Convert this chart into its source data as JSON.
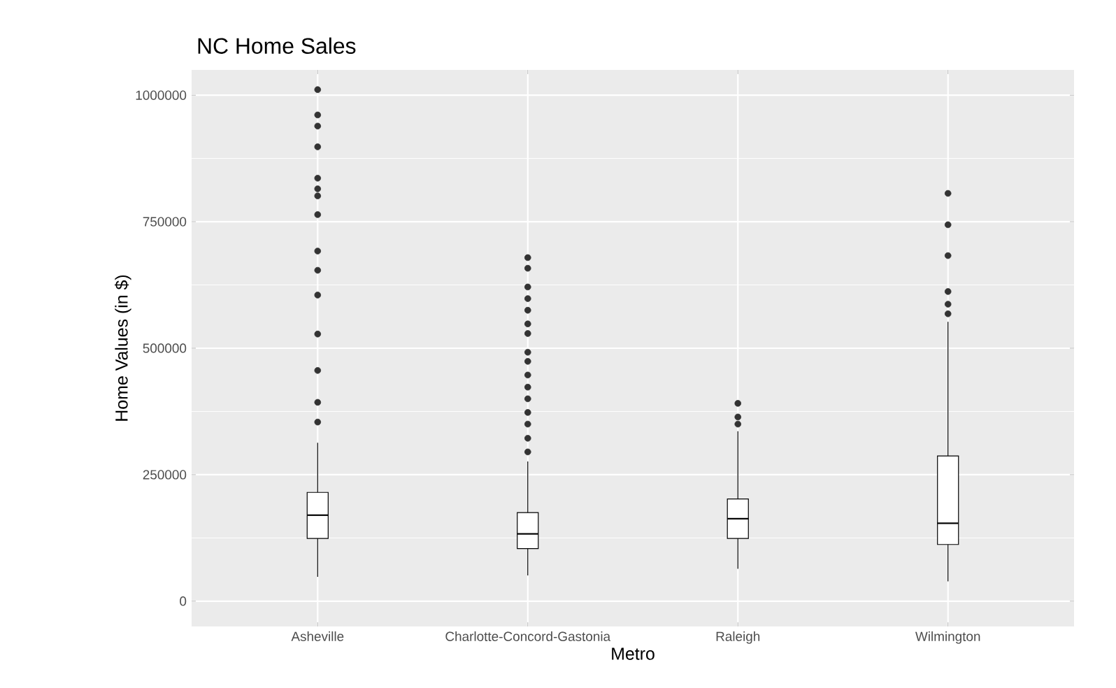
{
  "chart_data": {
    "type": "box",
    "title": "NC Home Sales",
    "xlabel": "Metro",
    "ylabel": "Home Values (in $)",
    "categories": [
      "Asheville",
      "Charlotte-Concord-Gastonia",
      "Raleigh",
      "Wilmington"
    ],
    "boxes": [
      {
        "low": 48000,
        "q1": 124000,
        "median": 170000,
        "q3": 215000,
        "high": 313000,
        "outliers": [
          1011000,
          961000,
          939000,
          898000,
          836000,
          815000,
          801000,
          764000,
          692000,
          654000,
          605000,
          528000,
          456000,
          393000,
          354000
        ]
      },
      {
        "low": 51000,
        "q1": 104000,
        "median": 133000,
        "q3": 175000,
        "high": 276000,
        "outliers": [
          679000,
          658000,
          621000,
          598000,
          575000,
          548000,
          529000,
          492000,
          474000,
          447000,
          423000,
          400000,
          373000,
          350000,
          322000,
          295000
        ]
      },
      {
        "low": 64000,
        "q1": 124000,
        "median": 163000,
        "q3": 202000,
        "high": 336000,
        "outliers": [
          391000,
          364000,
          350000
        ]
      },
      {
        "low": 39000,
        "q1": 112000,
        "median": 154000,
        "q3": 287000,
        "high": 552000,
        "outliers": [
          806000,
          744000,
          683000,
          612000,
          587000,
          568000
        ]
      }
    ],
    "ylim": [
      -50000,
      1050000
    ],
    "yticks": [
      0,
      250000,
      500000,
      750000,
      1000000
    ],
    "grid": true
  }
}
